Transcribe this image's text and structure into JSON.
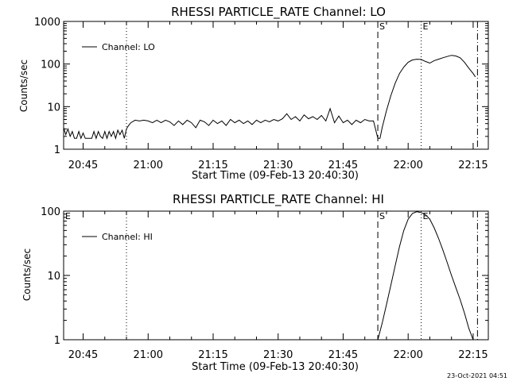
{
  "footer": {
    "timestamp": "23-Oct-2021 04:51"
  },
  "chart_data": [
    {
      "type": "line",
      "title": "RHESSI PARTICLE_RATE Channel: LO",
      "xlabel": "Start Time (09-Feb-13 20:40:30)",
      "ylabel": "Counts/sec",
      "yscale": "log",
      "ylim": [
        1,
        1000
      ],
      "xlim": [
        "20:40:30",
        "22:18:30"
      ],
      "x_ticks": [
        "20:45",
        "21:00",
        "21:15",
        "21:30",
        "21:45",
        "22:00",
        "22:15"
      ],
      "y_ticks": [
        "1",
        "10",
        "100",
        "1000"
      ],
      "legend": {
        "position": "top-left",
        "entries": [
          "Channel: LO"
        ]
      },
      "markers": [
        {
          "label": "S",
          "time": "21:53",
          "style": "dashed"
        },
        {
          "label": "E",
          "time": "22:03",
          "style": "dotted"
        },
        {
          "label": "",
          "time": "22:16",
          "style": "dash-dot"
        },
        {
          "label": "",
          "time": "20:55",
          "style": "dotted"
        }
      ],
      "series": [
        {
          "name": "Channel: LO",
          "x": [
            "20:40:30",
            "20:41",
            "20:41:30",
            "20:42",
            "20:42:30",
            "20:43",
            "20:43:30",
            "20:44",
            "20:44:30",
            "20:45",
            "20:45:30",
            "20:46",
            "20:46:30",
            "20:47",
            "20:47:30",
            "20:48",
            "20:48:30",
            "20:49",
            "20:49:30",
            "20:50",
            "20:50:30",
            "20:51",
            "20:51:30",
            "20:52",
            "20:52:30",
            "20:53",
            "20:53:30",
            "20:54",
            "20:54:30",
            "20:55",
            "20:55:30",
            "20:56",
            "20:57",
            "20:58",
            "20:59",
            "21:00",
            "21:01",
            "21:02",
            "21:03",
            "21:04",
            "21:05",
            "21:06",
            "21:07",
            "21:08",
            "21:09",
            "21:10",
            "21:11",
            "21:12",
            "21:13",
            "21:14",
            "21:15",
            "21:16",
            "21:17",
            "21:18",
            "21:19",
            "21:20",
            "21:21",
            "21:22",
            "21:23",
            "21:24",
            "21:25",
            "21:26",
            "21:27",
            "21:28",
            "21:29",
            "21:30",
            "21:31",
            "21:32",
            "21:33",
            "21:34",
            "21:35",
            "21:36",
            "21:37",
            "21:38",
            "21:39",
            "21:40",
            "21:41",
            "21:42",
            "21:43",
            "21:44",
            "21:45",
            "21:46",
            "21:47",
            "21:48",
            "21:49",
            "21:50",
            "21:51",
            "21:52",
            "21:53",
            "21:53:30",
            "21:54",
            "21:55",
            "21:56",
            "21:57",
            "21:58",
            "21:59",
            "22:00",
            "22:01",
            "22:02",
            "22:03",
            "22:04",
            "22:05",
            "22:06",
            "22:07",
            "22:08",
            "22:09",
            "22:10",
            "22:11",
            "22:12",
            "22:13",
            "22:14",
            "22:15",
            "22:15:30"
          ],
          "y": [
            3.2,
            2.2,
            3.0,
            2.0,
            2.6,
            1.8,
            1.8,
            2.6,
            1.8,
            2.4,
            1.8,
            1.8,
            1.8,
            1.8,
            2.6,
            1.8,
            2.6,
            2.0,
            1.8,
            2.6,
            1.8,
            2.6,
            2.0,
            2.6,
            1.8,
            2.8,
            2.2,
            2.8,
            1.8,
            3.0,
            3.6,
            4.2,
            4.8,
            4.6,
            4.8,
            4.6,
            4.2,
            4.8,
            4.2,
            4.8,
            4.4,
            3.6,
            4.6,
            3.8,
            4.8,
            4.2,
            3.2,
            4.8,
            4.4,
            3.6,
            4.8,
            4.0,
            4.6,
            3.6,
            5.0,
            4.2,
            4.8,
            4.0,
            4.6,
            3.8,
            4.8,
            4.2,
            4.8,
            4.4,
            5.0,
            4.6,
            5.2,
            6.8,
            5.0,
            5.8,
            4.6,
            6.4,
            5.2,
            5.8,
            5.0,
            6.2,
            4.6,
            9.0,
            4.2,
            6.0,
            4.2,
            4.8,
            3.8,
            4.8,
            4.2,
            5.0,
            4.6,
            4.6,
            1.8,
            1.8,
            3.2,
            8.0,
            18.0,
            35.0,
            60.0,
            85.0,
            110.0,
            125.0,
            130.0,
            128.0,
            115.0,
            105.0,
            120.0,
            130.0,
            140.0,
            150.0,
            160.0,
            155.0,
            140.0,
            110.0,
            80.0,
            60.0,
            50.0
          ]
        }
      ]
    },
    {
      "type": "line",
      "title": "RHESSI PARTICLE_RATE Channel: HI",
      "xlabel": "Start Time (09-Feb-13 20:40:30)",
      "ylabel": "Counts/sec",
      "yscale": "log",
      "ylim": [
        1,
        100
      ],
      "xlim": [
        "20:40:30",
        "22:18:30"
      ],
      "x_ticks": [
        "20:45",
        "21:00",
        "21:15",
        "21:30",
        "21:45",
        "22:00",
        "22:15"
      ],
      "y_ticks": [
        "1",
        "10",
        "100"
      ],
      "legend": {
        "position": "top-left",
        "entries": [
          "Channel: HI"
        ]
      },
      "markers": [
        {
          "label": "S",
          "time": "21:53",
          "style": "dashed"
        },
        {
          "label": "E",
          "time": "22:03",
          "style": "dotted"
        },
        {
          "label": "",
          "time": "22:16",
          "style": "dash-dot"
        },
        {
          "label": "",
          "time": "20:55",
          "style": "dotted"
        },
        {
          "label": "E",
          "time": "20:40:30",
          "style": "none"
        }
      ],
      "series": [
        {
          "name": "Channel: HI",
          "x": [
            "21:53",
            "21:54",
            "21:55",
            "21:56",
            "21:57",
            "21:58",
            "21:59",
            "22:00",
            "22:01",
            "22:02",
            "22:03",
            "22:04",
            "22:05",
            "22:06",
            "22:07",
            "22:08",
            "22:09",
            "22:10",
            "22:11",
            "22:12",
            "22:13",
            "22:14",
            "22:15"
          ],
          "y": [
            1.0,
            1.8,
            3.5,
            7.0,
            14.0,
            28.0,
            50.0,
            75.0,
            92.0,
            98.0,
            95.0,
            88.0,
            75.0,
            55.0,
            38.0,
            25.0,
            16.0,
            10.0,
            6.5,
            4.2,
            2.6,
            1.5,
            1.0
          ]
        }
      ]
    }
  ]
}
